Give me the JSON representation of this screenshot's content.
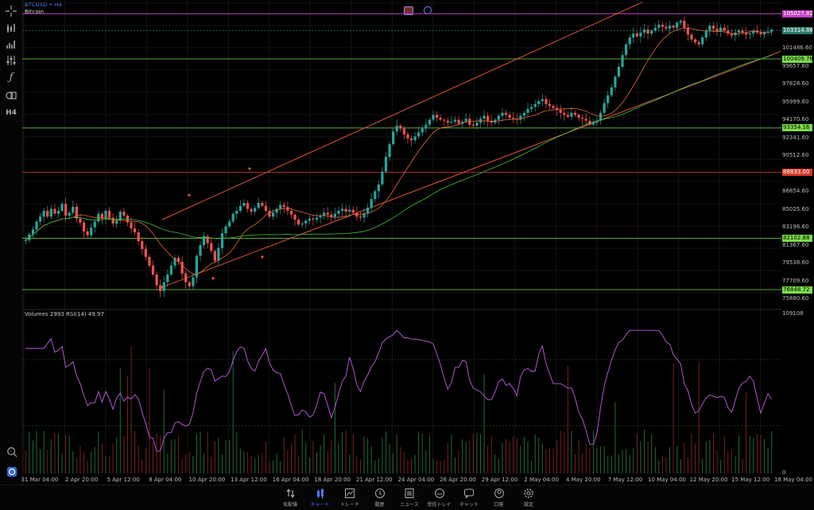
{
  "symbol": {
    "ticker": "BTCUSD",
    "sep": "•",
    "timeframe": "H4",
    "description": "Bitcoin"
  },
  "oscillator_label": "Volumes 2993 RSI(14) 49.97",
  "toolbar_icons": [
    "crosshair-icon",
    "indicator-icon",
    "bar-chart-icon",
    "settings-sliders-icon",
    "function-icon",
    "object-list-icon",
    "timeframe-icon"
  ],
  "toolbar_timeframe_label": "H4",
  "price_labels": [
    "105027.82",
    "103314.86",
    "101486.60",
    "100409.78",
    "99657.60",
    "97828.60",
    "95999.60",
    "94170.60",
    "93354.16",
    "92341.60",
    "90512.60",
    "88833.00",
    "86854.60",
    "85025.60",
    "83196.60",
    "82102.88",
    "81367.60",
    "79538.60",
    "77709.60",
    "76848.72",
    "75880.60"
  ],
  "highlight_tags": [
    {
      "text": "105027.82",
      "color": "#c53fc5"
    },
    {
      "text": "103314.86",
      "color": "#2d7a6e"
    },
    {
      "text": "100409.78",
      "color": "#7cdc4a"
    },
    {
      "text": "93354.16",
      "color": "#7cdc4a"
    },
    {
      "text": "88833.00",
      "color": "#d63a2a"
    },
    {
      "text": "82102.88",
      "color": "#7cdc4a"
    },
    {
      "text": "76848.72",
      "color": "#7cdc4a"
    }
  ],
  "osc_labels": [
    "109108",
    "0"
  ],
  "x_labels": [
    "31 Mar 04:00",
    "2 Apr 20:00",
    "5 Apr 12:00",
    "8 Apr 04:00",
    "10 Apr 20:00",
    "13 Apr 12:00",
    "16 Apr 04:00",
    "18 Apr 20:00",
    "21 Apr 12:00",
    "24 Apr 04:00",
    "26 Apr 20:00",
    "29 Apr 12:00",
    "2 May 04:00",
    "4 May 20:00",
    "7 May 12:00",
    "10 May 04:00",
    "12 May 20:00",
    "15 May 12:00",
    "18 May 04:00"
  ],
  "nav": [
    {
      "label": "気配値",
      "icon": "quotes-icon",
      "active": false
    },
    {
      "label": "チャート",
      "icon": "chart-icon",
      "active": true
    },
    {
      "label": "トレード",
      "icon": "trade-icon",
      "active": false
    },
    {
      "label": "履歴",
      "icon": "history-icon",
      "active": false
    },
    {
      "label": "ニュース",
      "icon": "news-icon",
      "active": false
    },
    {
      "label": "受信トレイ",
      "icon": "inbox-icon",
      "active": false
    },
    {
      "label": "チャット",
      "icon": "chat-icon",
      "active": false
    },
    {
      "label": "口座",
      "icon": "account-icon",
      "active": false
    },
    {
      "label": "設定",
      "icon": "settings-icon",
      "active": false
    }
  ],
  "colors": {
    "bull": "#26a69a",
    "bear": "#ef5350",
    "hline": "#7cdc4a",
    "hline_red": "#d63a2a",
    "channel": "#e0533a",
    "rsi": "#c05ee0",
    "ma_slow": "#3fbf3f",
    "ma_mid": "#e06a3a",
    "top_line": "#c53fc5"
  },
  "chart_data": {
    "type": "candlestick",
    "price_range": [
      74900,
      106100
    ],
    "horizontal_levels": [
      105027.82,
      103314.86,
      100409.78,
      93354.16,
      88833.0,
      82102.88,
      76848.72
    ],
    "closes": [
      81900,
      82500,
      83000,
      83800,
      84300,
      84900,
      84300,
      85100,
      84600,
      84900,
      85600,
      84400,
      84700,
      85300,
      84100,
      83700,
      82800,
      82400,
      83200,
      83800,
      84600,
      84100,
      84900,
      84200,
      83600,
      83900,
      84800,
      84400,
      83700,
      83100,
      82700,
      81800,
      81000,
      80200,
      79300,
      78400,
      77300,
      76700,
      77600,
      78400,
      79300,
      80100,
      79700,
      78500,
      77600,
      77200,
      78100,
      80300,
      81400,
      82300,
      81600,
      80800,
      79800,
      81100,
      82600,
      83300,
      83800,
      84600,
      84900,
      85400,
      85700,
      85100,
      84800,
      85200,
      85700,
      85400,
      84900,
      84300,
      84700,
      85100,
      85500,
      85300,
      84900,
      84500,
      84000,
      83500,
      83600,
      83900,
      84100,
      84000,
      84200,
      84400,
      84700,
      84500,
      84300,
      84600,
      84900,
      85100,
      84800,
      85000,
      84700,
      84300,
      84200,
      84600,
      85200,
      86100,
      86900,
      87600,
      88900,
      90400,
      91700,
      93000,
      93600,
      93300,
      92700,
      92300,
      92100,
      92500,
      92900,
      93300,
      93700,
      94200,
      94700,
      94400,
      94200,
      94100,
      93900,
      94000,
      94200,
      93800,
      94000,
      94300,
      93700,
      93600,
      93900,
      94300,
      94600,
      94100,
      93900,
      94200,
      94600,
      94900,
      94700,
      94400,
      94300,
      94200,
      94600,
      94900,
      95300,
      95500,
      95800,
      96100,
      96300,
      95800,
      95600,
      95400,
      95200,
      94900,
      94700,
      94500,
      94900,
      94700,
      94400,
      94300,
      94100,
      93700,
      93900,
      94100,
      94900,
      95900,
      96700,
      97500,
      98600,
      99600,
      100800,
      101900,
      102600,
      103000,
      102700,
      103100,
      103400,
      103000,
      103300,
      103600,
      103900,
      103700,
      103500,
      103800,
      103600,
      104100,
      104300,
      103600,
      102900,
      102400,
      102100,
      101900,
      102600,
      103300,
      103800,
      103500,
      103200,
      103600,
      103300,
      103000,
      102800,
      103100,
      103300,
      103100,
      102900,
      103000,
      103300,
      103100,
      102900,
      103100,
      103200,
      103400
    ]
  }
}
